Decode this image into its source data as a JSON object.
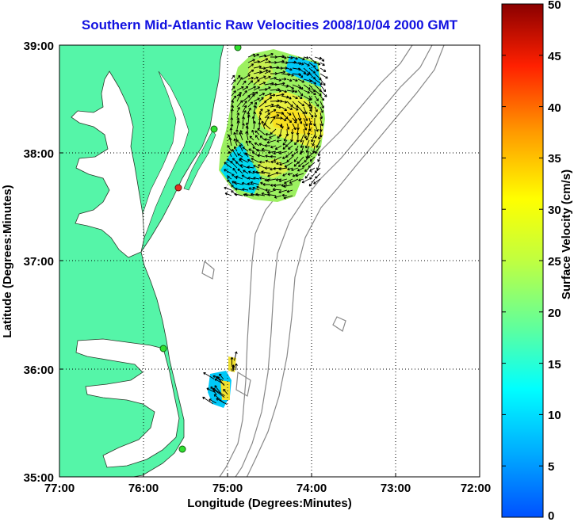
{
  "title": "Southern Mid-Atlantic Raw Velocities 2008/10/04 2000 GMT",
  "x_axis": {
    "label": "Longitude (Degrees:Minutes)",
    "ticks": [
      "77:00",
      "76:00",
      "75:00",
      "74:00",
      "73:00",
      "72:00"
    ]
  },
  "y_axis": {
    "label": "Latitude (Degrees:Minutes)",
    "ticks": [
      "39:00",
      "38:00",
      "37:00",
      "36:00",
      "35:00"
    ]
  },
  "colorbar": {
    "label": "Surface Velocity (cm/s)",
    "ticks": [
      "50",
      "45",
      "40",
      "35",
      "30",
      "25",
      "20",
      "15",
      "10",
      "5",
      "0"
    ],
    "min": 0,
    "max": 50
  },
  "colors": {
    "land": "#55f5a8",
    "title": "#1010e0",
    "grid": "#000000",
    "bathymetry": "#888888"
  }
}
